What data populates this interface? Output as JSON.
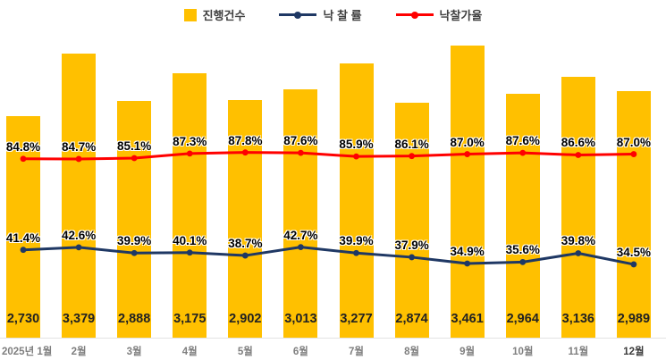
{
  "legend": {
    "items": [
      {
        "label": "진행건수",
        "marker": "bar",
        "color": "#FFC000"
      },
      {
        "label": "낙 찰 률",
        "marker": "line-dot",
        "color": "#1F3864"
      },
      {
        "label": "낙찰가율",
        "marker": "line-dot",
        "color": "#FF0000"
      }
    ]
  },
  "chart_data": {
    "type": "bar+line",
    "title": "",
    "categories": [
      "2025년 1월",
      "2월",
      "3월",
      "4월",
      "5월",
      "6월",
      "7월",
      "8월",
      "9월",
      "10월",
      "11월",
      "12월"
    ],
    "series": [
      {
        "name": "진행건수",
        "type": "bar",
        "color": "#FFC000",
        "values": [
          2730,
          3379,
          2888,
          3175,
          2902,
          3013,
          3277,
          2874,
          3461,
          2964,
          3136,
          2989
        ],
        "labels": [
          "2,730",
          "3,379",
          "2,888",
          "3,175",
          "2,902",
          "3,013",
          "3,277",
          "2,874",
          "3,461",
          "2,964",
          "3,136",
          "2,989"
        ]
      },
      {
        "name": "낙 찰 률",
        "type": "line",
        "color": "#1F3864",
        "values": [
          41.4,
          42.6,
          39.9,
          40.1,
          38.7,
          42.7,
          39.9,
          37.9,
          34.9,
          35.6,
          39.8,
          34.5
        ],
        "labels": [
          "41.4%",
          "42.6%",
          "39.9%",
          "40.1%",
          "38.7%",
          "42.7%",
          "39.9%",
          "37.9%",
          "34.9%",
          "35.6%",
          "39.8%",
          "34.5%"
        ]
      },
      {
        "name": "낙찰가율",
        "type": "line",
        "color": "#FF0000",
        "values": [
          84.8,
          84.7,
          85.1,
          87.3,
          87.8,
          87.6,
          85.9,
          86.1,
          87.0,
          87.6,
          86.6,
          87.0
        ],
        "labels": [
          "84.8%",
          "84.7%",
          "85.1%",
          "87.3%",
          "87.8%",
          "87.6%",
          "85.9%",
          "86.1%",
          "87.0%",
          "87.6%",
          "86.6%",
          "87.0%"
        ]
      }
    ],
    "legend_position": "top",
    "grid": false,
    "value_labels": "shown",
    "axes_hidden": true
  }
}
